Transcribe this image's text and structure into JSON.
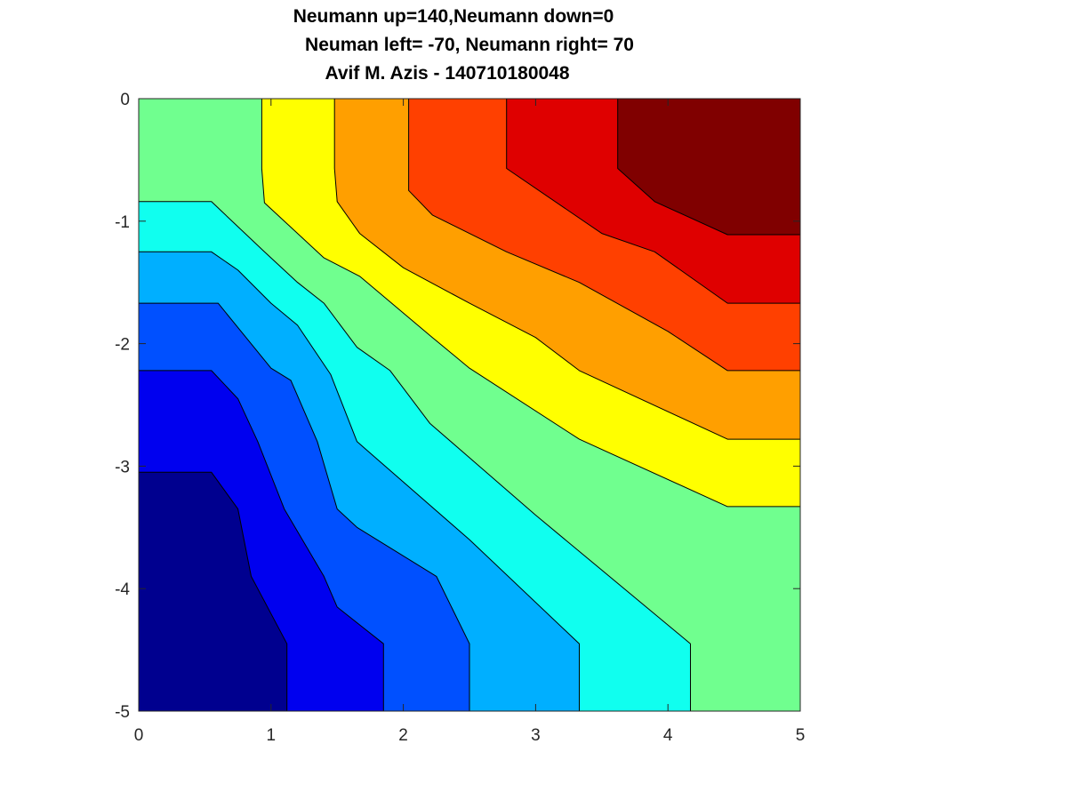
{
  "chart_data": {
    "type": "heatmap",
    "subtype": "filled-contour",
    "title_lines": [
      "Neumann up=140,Neumann down=0",
      "Neuman left= -70, Neumann right= 70",
      "Avif M. Azis - 140710180048"
    ],
    "xlabel": "",
    "ylabel": "",
    "xlim": [
      0,
      5
    ],
    "ylim": [
      -5,
      0
    ],
    "x_ticks": [
      0,
      1,
      2,
      3,
      4,
      5
    ],
    "y_ticks": [
      0,
      -1,
      -2,
      -3,
      -4,
      -5
    ],
    "colormap": "jet",
    "grid": false,
    "levels": [
      {
        "color": "#00008f"
      },
      {
        "color": "#0000ef"
      },
      {
        "color": "#0050ff"
      },
      {
        "color": "#00afff"
      },
      {
        "color": "#10ffef"
      },
      {
        "color": "#70ff8f"
      },
      {
        "color": "#ffff00"
      },
      {
        "color": "#ff9f00"
      },
      {
        "color": "#ff4000"
      },
      {
        "color": "#df0000"
      },
      {
        "color": "#800000"
      }
    ],
    "contour_lines": [
      [
        [
          1.12,
          -5
        ],
        [
          1.12,
          -4.45
        ],
        [
          0.85,
          -3.9
        ],
        [
          0.75,
          -3.35
        ],
        [
          0.55,
          -3.05
        ],
        [
          0,
          -3.05
        ]
      ],
      [
        [
          1.85,
          -5
        ],
        [
          1.85,
          -4.45
        ],
        [
          1.5,
          -4.15
        ],
        [
          1.4,
          -3.9
        ],
        [
          1.1,
          -3.35
        ],
        [
          0.9,
          -2.8
        ],
        [
          0.75,
          -2.45
        ],
        [
          0.55,
          -2.22
        ],
        [
          0,
          -2.22
        ]
      ],
      [
        [
          2.5,
          -5
        ],
        [
          2.5,
          -4.45
        ],
        [
          2.25,
          -3.9
        ],
        [
          1.65,
          -3.5
        ],
        [
          1.5,
          -3.35
        ],
        [
          1.35,
          -2.8
        ],
        [
          1.15,
          -2.3
        ],
        [
          1.0,
          -2.2
        ],
        [
          0.6,
          -1.67
        ],
        [
          0,
          -1.67
        ]
      ],
      [
        [
          3.33,
          -5
        ],
        [
          3.33,
          -4.45
        ],
        [
          2.5,
          -3.6
        ],
        [
          1.65,
          -2.8
        ],
        [
          1.45,
          -2.25
        ],
        [
          1.2,
          -1.85
        ],
        [
          1.0,
          -1.67
        ],
        [
          0.75,
          -1.4
        ],
        [
          0.55,
          -1.25
        ],
        [
          0,
          -1.25
        ]
      ],
      [
        [
          4.17,
          -5
        ],
        [
          4.17,
          -4.45
        ],
        [
          3.0,
          -3.4
        ],
        [
          2.2,
          -2.65
        ],
        [
          1.9,
          -2.22
        ],
        [
          1.65,
          -2.03
        ],
        [
          1.4,
          -1.67
        ],
        [
          1.2,
          -1.5
        ],
        [
          0.95,
          -1.25
        ],
        [
          0.55,
          -0.84
        ],
        [
          0,
          -0.84
        ]
      ],
      [
        [
          5,
          -3.33
        ],
        [
          4.45,
          -3.33
        ],
        [
          3.33,
          -2.78
        ],
        [
          2.5,
          -2.2
        ],
        [
          2.22,
          -1.95
        ],
        [
          1.67,
          -1.45
        ],
        [
          1.4,
          -1.3
        ],
        [
          0.95,
          -0.85
        ],
        [
          0.93,
          -0.57
        ],
        [
          0.93,
          0
        ]
      ],
      [
        [
          5,
          -2.78
        ],
        [
          4.45,
          -2.78
        ],
        [
          3.33,
          -2.22
        ],
        [
          3.0,
          -1.95
        ],
        [
          2.5,
          -1.67
        ],
        [
          2.0,
          -1.38
        ],
        [
          1.67,
          -1.1
        ],
        [
          1.5,
          -0.84
        ],
        [
          1.48,
          -0.57
        ],
        [
          1.48,
          0
        ]
      ],
      [
        [
          5,
          -2.22
        ],
        [
          4.45,
          -2.22
        ],
        [
          4.0,
          -1.9
        ],
        [
          3.33,
          -1.5
        ],
        [
          2.78,
          -1.25
        ],
        [
          2.22,
          -0.95
        ],
        [
          2.04,
          -0.75
        ],
        [
          2.04,
          -0.57
        ],
        [
          2.04,
          0
        ]
      ],
      [
        [
          5,
          -1.67
        ],
        [
          4.45,
          -1.67
        ],
        [
          3.9,
          -1.25
        ],
        [
          3.5,
          -1.1
        ],
        [
          2.78,
          -0.57
        ],
        [
          2.78,
          0
        ]
      ],
      [
        [
          5,
          -1.11
        ],
        [
          4.45,
          -1.11
        ],
        [
          3.9,
          -0.84
        ],
        [
          3.62,
          -0.57
        ],
        [
          3.62,
          0
        ]
      ]
    ]
  }
}
